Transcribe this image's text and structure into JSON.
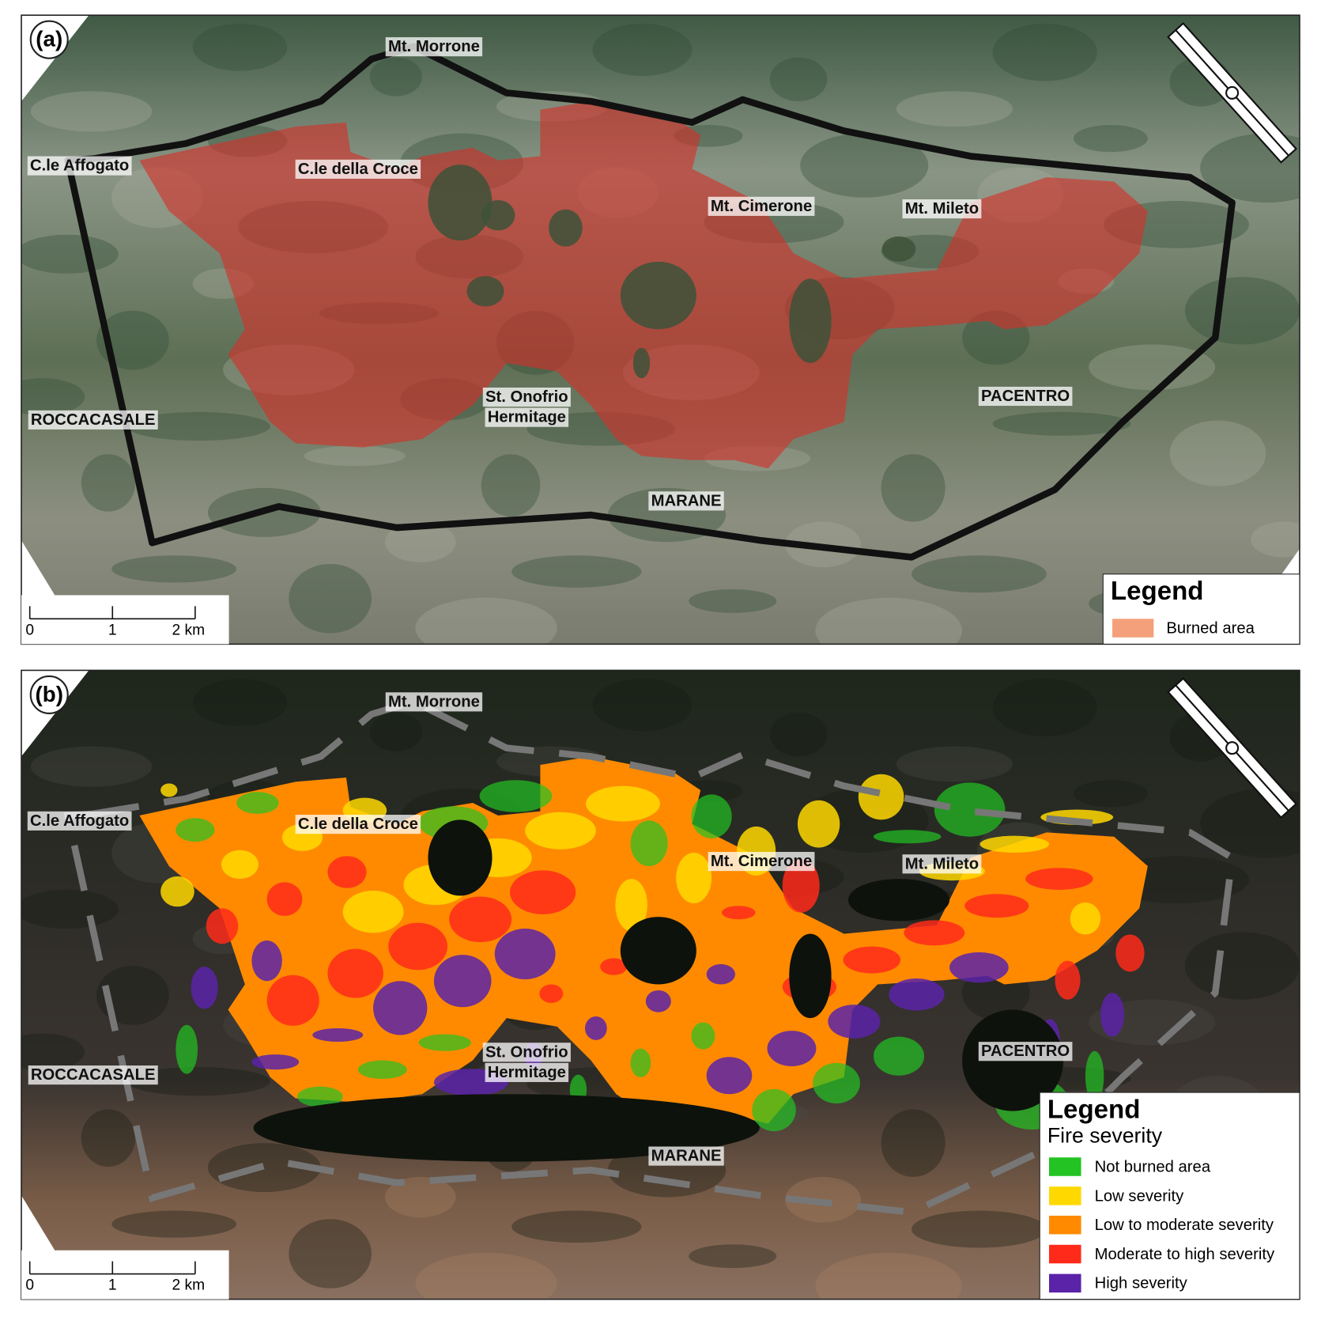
{
  "panel_a": {
    "label": "(a)",
    "places": [
      "Mt. Morrone",
      "C.le Affogato",
      "C.le della Croce",
      "Mt. Cimerone",
      "Mt. Mileto",
      "St. Onofrio",
      "Hermitage",
      "ROCCACASALE",
      "PACENTRO",
      "MARANE"
    ],
    "scale": [
      "0",
      "1",
      "2 km"
    ],
    "legend": {
      "title": "Legend",
      "items": [
        {
          "label": "Burned area",
          "color": "#f4a07a"
        }
      ]
    }
  },
  "panel_b": {
    "label": "(b)",
    "places": [
      "Mt. Morrone",
      "C.le Affogato",
      "C.le della Croce",
      "Mt. Cimerone",
      "Mt. Mileto",
      "St. Onofrio",
      "Hermitage",
      "ROCCACASALE",
      "PACENTRO",
      "MARANE"
    ],
    "scale": [
      "0",
      "1",
      "2 km"
    ],
    "legend": {
      "title": "Legend",
      "subtitle": "Fire severity",
      "items": [
        {
          "label": "Not burned area",
          "color": "#22c322"
        },
        {
          "label": "Low severity",
          "color": "#ffd800"
        },
        {
          "label": "Low to moderate severity",
          "color": "#ff8a00"
        },
        {
          "label": "Moderate to high severity",
          "color": "#ff2a1a"
        },
        {
          "label": "High severity",
          "color": "#5a23a8"
        }
      ]
    }
  }
}
